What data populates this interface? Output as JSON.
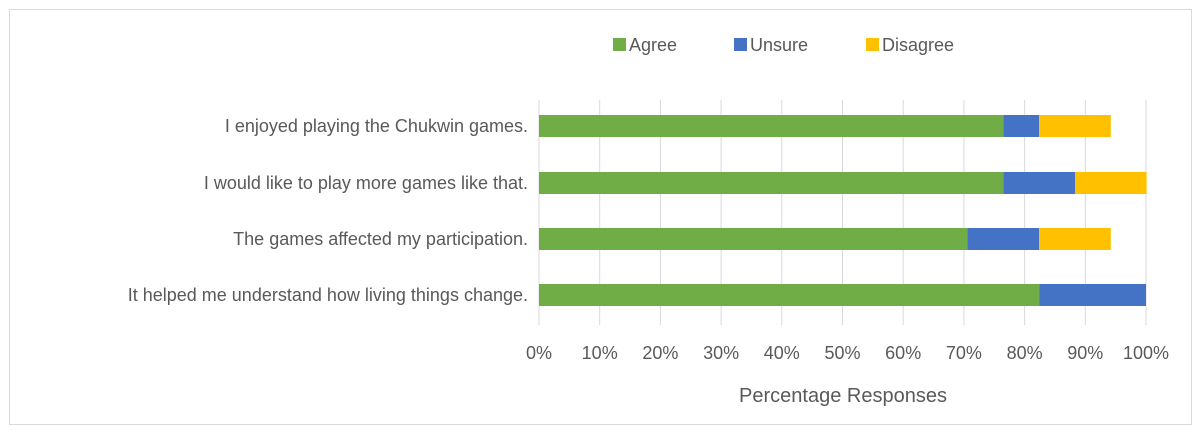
{
  "chart_data": {
    "type": "bar",
    "orientation": "horizontal",
    "stacked": true,
    "title": "",
    "xlabel": "Percentage Responses",
    "ylabel": "",
    "xlim": [
      0,
      100
    ],
    "x_ticks": [
      "0%",
      "10%",
      "20%",
      "30%",
      "40%",
      "50%",
      "60%",
      "70%",
      "80%",
      "90%",
      "100%"
    ],
    "grid": "vertical",
    "legend": "top-center",
    "categories": [
      "I enjoyed playing the Chukwin games.",
      "I would like to play more games like that.",
      "The games affected my participation.",
      "It helped me understand how living things change."
    ],
    "series": [
      {
        "name": "Agree",
        "color": "#70ad47",
        "values": [
          76.5,
          76.5,
          70.6,
          82.4
        ]
      },
      {
        "name": "Unsure",
        "color": "#4472c4",
        "values": [
          5.9,
          11.8,
          11.8,
          17.6
        ]
      },
      {
        "name": "Disagree",
        "color": "#ffc000",
        "values": [
          11.8,
          11.8,
          11.8,
          0
        ]
      }
    ]
  }
}
